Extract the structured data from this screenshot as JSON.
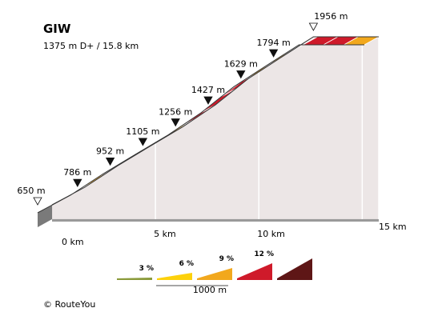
{
  "chart_data": {
    "type": "area",
    "title": "GIW",
    "subtitle": "1375 m D+ / 15.8 km",
    "distance_unit": "km",
    "elevation_unit": "m",
    "start_elevation_label": "650 m",
    "summit_elevation_label": "1956 m",
    "km_axis": {
      "ticks": [
        0,
        5,
        10,
        15
      ],
      "tick_labels": [
        "0 km",
        "5 km",
        "10 km",
        "15 km"
      ],
      "range": [
        0,
        15.8
      ]
    },
    "waypoints": [
      {
        "km": 0,
        "elevation": 650,
        "label": "650 m",
        "marker": "start"
      },
      {
        "km": 1.58,
        "elevation": 786,
        "label": "786 m",
        "marker": "point"
      },
      {
        "km": 3.16,
        "elevation": 952,
        "label": "952 m",
        "marker": "point"
      },
      {
        "km": 4.74,
        "elevation": 1105,
        "label": "1105 m",
        "marker": "point"
      },
      {
        "km": 6.32,
        "elevation": 1256,
        "label": "1256 m",
        "marker": "point"
      },
      {
        "km": 7.9,
        "elevation": 1427,
        "label": "1427 m",
        "marker": "point"
      },
      {
        "km": 9.48,
        "elevation": 1629,
        "label": "1629 m",
        "marker": "point"
      },
      {
        "km": 11.06,
        "elevation": 1794,
        "label": "1794 m",
        "marker": "point"
      },
      {
        "km": 12.64,
        "elevation": 1956,
        "label": "",
        "marker": "none"
      },
      {
        "km": 15.8,
        "elevation": 1956,
        "label": "1956 m",
        "marker": "summit"
      }
    ],
    "segment_gradients_percent": [
      6,
      4,
      6,
      8,
      9,
      8,
      6,
      9,
      11,
      9,
      6,
      6,
      9,
      9,
      11,
      6
    ],
    "gradient_legend": {
      "thresholds": [
        "3 %",
        "6 %",
        "9 %",
        "12 %"
      ],
      "scale_label": "1000 m",
      "colors": [
        "#8a9a3a",
        "#fdd10b",
        "#f2a81d",
        "#cf1a2a",
        "#5e1616"
      ]
    },
    "copyright": "© RouteYou"
  }
}
